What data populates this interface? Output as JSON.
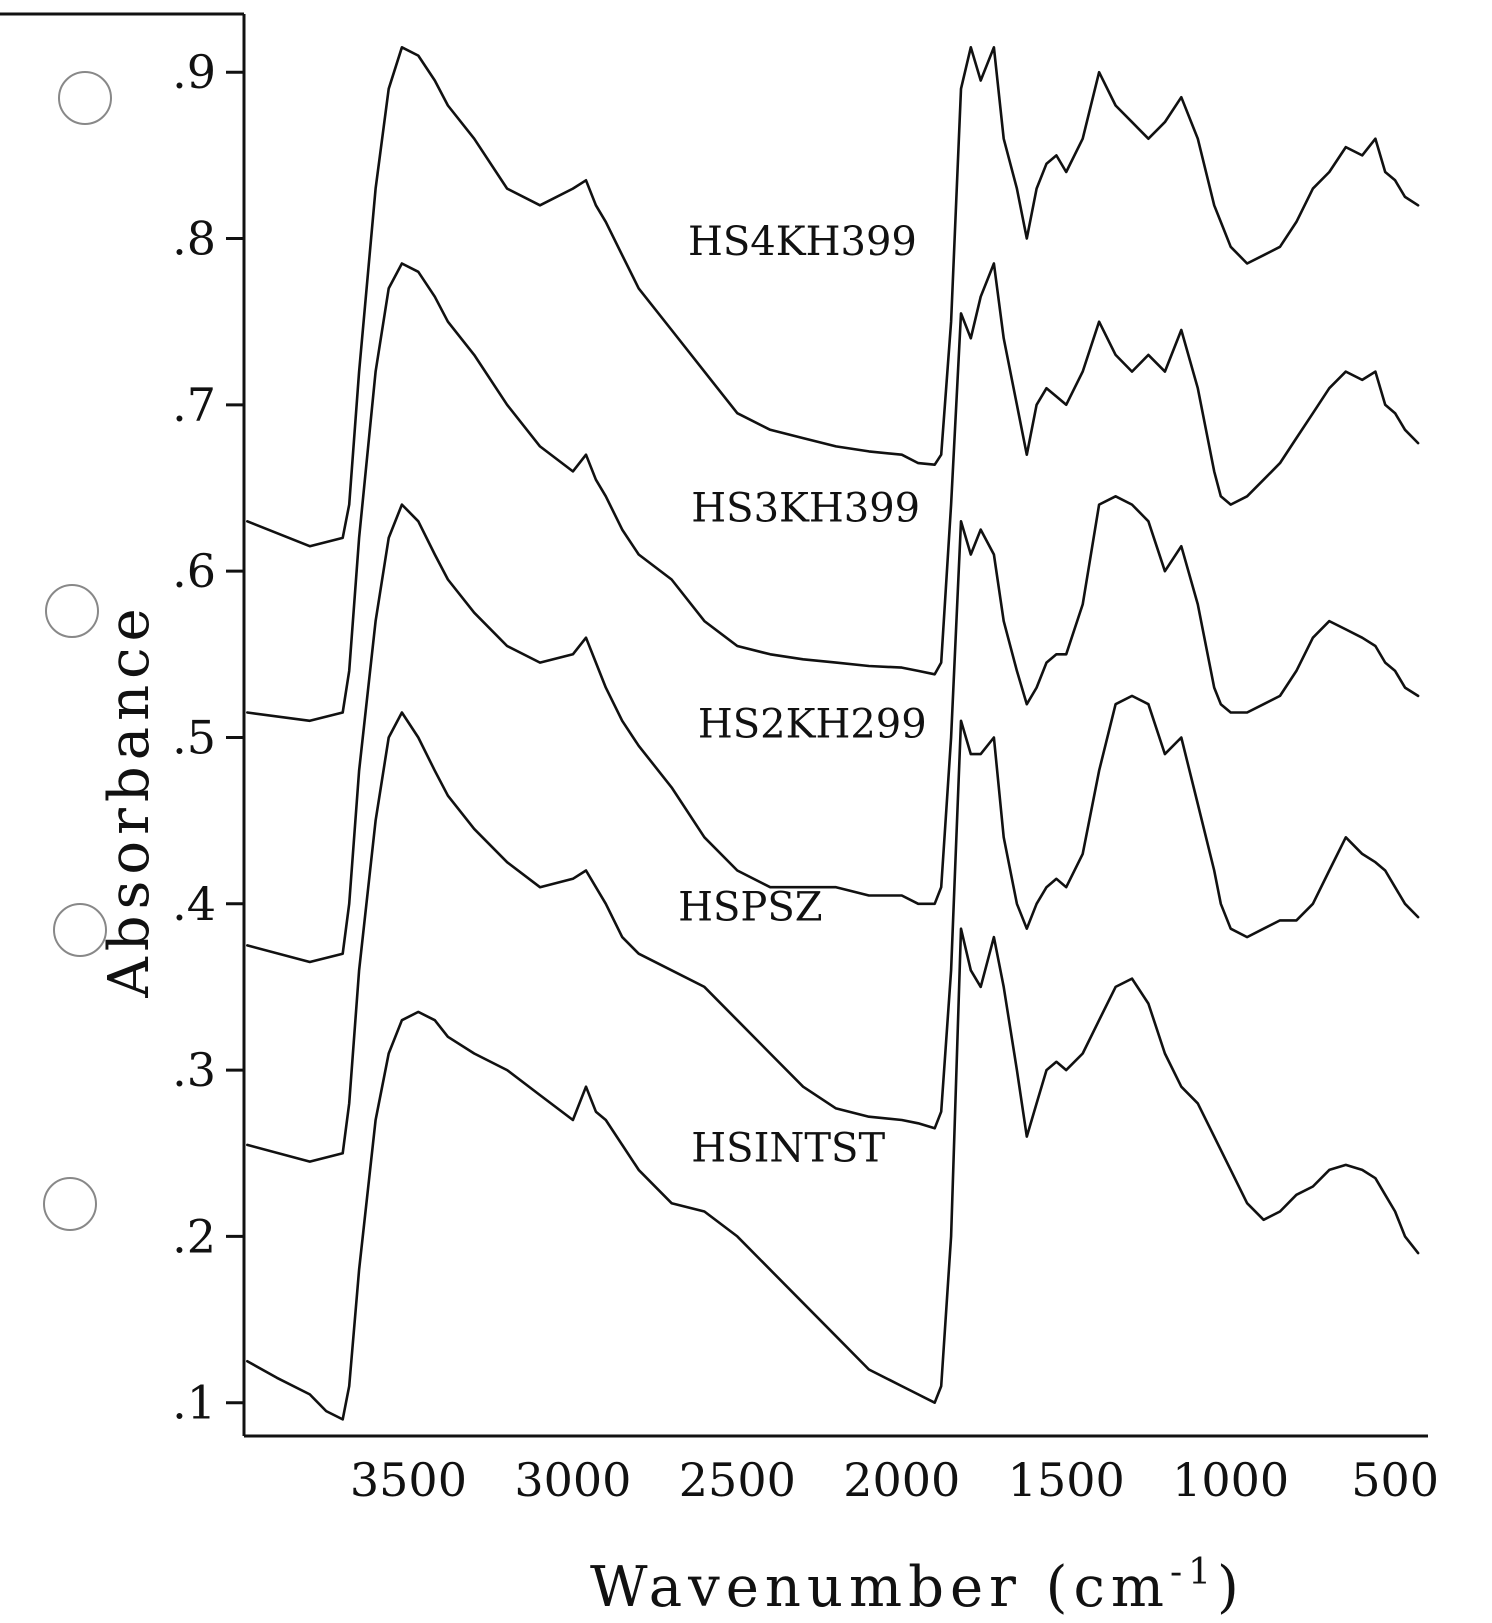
{
  "chart_data": {
    "type": "line",
    "title": "",
    "xlabel": "Wavenumber (cm",
    "xlabel_sup": "-1",
    "xlabel_close": ")",
    "ylabel": "Absorbance",
    "xlim": [
      4000,
      400
    ],
    "x_reversed": true,
    "ylim": [
      0.08,
      0.935
    ],
    "grid": false,
    "legend": "none (series labelled inline)",
    "yticks": [
      0.1,
      0.2,
      0.3,
      0.4,
      0.5,
      0.6,
      0.7,
      0.8,
      0.9
    ],
    "ytick_labels": [
      ".1",
      ".2",
      ".3",
      ".4",
      ".5",
      ".6",
      ".7",
      ".8",
      ".9"
    ],
    "xticks": [
      3500,
      3000,
      2500,
      2000,
      1500,
      1000,
      500
    ],
    "xtick_labels": [
      "3500",
      "3000",
      "2500",
      "2000",
      "1500",
      "1000",
      "500"
    ],
    "series": [
      {
        "name": "HS4KH399",
        "label_at": [
          2650,
          0.79
        ],
        "x": [
          3990,
          3800,
          3700,
          3680,
          3650,
          3600,
          3560,
          3520,
          3470,
          3420,
          3380,
          3300,
          3200,
          3100,
          3000,
          2960,
          2930,
          2900,
          2850,
          2800,
          2700,
          2600,
          2500,
          2400,
          2300,
          2200,
          2100,
          2000,
          1950,
          1900,
          1880,
          1850,
          1820,
          1790,
          1760,
          1720,
          1690,
          1650,
          1620,
          1590,
          1560,
          1530,
          1500,
          1450,
          1400,
          1350,
          1300,
          1250,
          1200,
          1150,
          1100,
          1050,
          1030,
          1000,
          950,
          900,
          850,
          800,
          750,
          700,
          650,
          600,
          560,
          530,
          500,
          470,
          430
        ],
        "y": [
          0.63,
          0.615,
          0.62,
          0.64,
          0.72,
          0.83,
          0.89,
          0.915,
          0.91,
          0.895,
          0.88,
          0.86,
          0.83,
          0.82,
          0.83,
          0.835,
          0.82,
          0.81,
          0.79,
          0.77,
          0.745,
          0.72,
          0.695,
          0.685,
          0.68,
          0.675,
          0.672,
          0.67,
          0.665,
          0.664,
          0.67,
          0.75,
          0.89,
          0.915,
          0.895,
          0.915,
          0.86,
          0.83,
          0.8,
          0.83,
          0.845,
          0.85,
          0.84,
          0.86,
          0.9,
          0.88,
          0.87,
          0.86,
          0.87,
          0.885,
          0.86,
          0.82,
          0.81,
          0.795,
          0.785,
          0.79,
          0.795,
          0.81,
          0.83,
          0.84,
          0.855,
          0.85,
          0.86,
          0.84,
          0.835,
          0.825,
          0.82
        ]
      },
      {
        "name": "HS3KH399",
        "label_at": [
          2640,
          0.63
        ],
        "x": [
          3990,
          3800,
          3700,
          3680,
          3650,
          3600,
          3560,
          3520,
          3470,
          3420,
          3380,
          3300,
          3200,
          3100,
          3000,
          2960,
          2930,
          2900,
          2850,
          2800,
          2700,
          2600,
          2500,
          2400,
          2300,
          2200,
          2100,
          2000,
          1950,
          1900,
          1880,
          1850,
          1820,
          1790,
          1760,
          1720,
          1690,
          1650,
          1620,
          1590,
          1560,
          1530,
          1500,
          1450,
          1400,
          1350,
          1300,
          1250,
          1200,
          1150,
          1100,
          1050,
          1030,
          1000,
          950,
          900,
          850,
          800,
          750,
          700,
          650,
          600,
          560,
          530,
          500,
          470,
          430
        ],
        "y": [
          0.515,
          0.51,
          0.515,
          0.54,
          0.62,
          0.72,
          0.77,
          0.785,
          0.78,
          0.765,
          0.75,
          0.73,
          0.7,
          0.675,
          0.66,
          0.67,
          0.655,
          0.645,
          0.625,
          0.61,
          0.595,
          0.57,
          0.555,
          0.55,
          0.547,
          0.545,
          0.543,
          0.542,
          0.54,
          0.538,
          0.545,
          0.64,
          0.755,
          0.74,
          0.765,
          0.785,
          0.74,
          0.7,
          0.67,
          0.7,
          0.71,
          0.705,
          0.7,
          0.72,
          0.75,
          0.73,
          0.72,
          0.73,
          0.72,
          0.745,
          0.71,
          0.66,
          0.645,
          0.64,
          0.645,
          0.655,
          0.665,
          0.68,
          0.695,
          0.71,
          0.72,
          0.715,
          0.72,
          0.7,
          0.695,
          0.685,
          0.677
        ]
      },
      {
        "name": "HS2KH299",
        "label_at": [
          2620,
          0.5
        ],
        "x": [
          3990,
          3800,
          3700,
          3680,
          3650,
          3600,
          3560,
          3520,
          3470,
          3420,
          3380,
          3300,
          3200,
          3100,
          3000,
          2960,
          2930,
          2900,
          2850,
          2800,
          2700,
          2600,
          2500,
          2400,
          2300,
          2200,
          2100,
          2000,
          1950,
          1900,
          1880,
          1850,
          1820,
          1790,
          1760,
          1720,
          1690,
          1650,
          1620,
          1590,
          1560,
          1530,
          1500,
          1450,
          1400,
          1350,
          1300,
          1250,
          1200,
          1150,
          1100,
          1050,
          1030,
          1000,
          950,
          900,
          850,
          800,
          750,
          700,
          650,
          600,
          560,
          530,
          500,
          470,
          430
        ],
        "y": [
          0.375,
          0.365,
          0.37,
          0.4,
          0.48,
          0.57,
          0.62,
          0.64,
          0.63,
          0.61,
          0.595,
          0.575,
          0.555,
          0.545,
          0.55,
          0.56,
          0.545,
          0.53,
          0.51,
          0.495,
          0.47,
          0.44,
          0.42,
          0.41,
          0.41,
          0.41,
          0.405,
          0.405,
          0.4,
          0.4,
          0.41,
          0.5,
          0.63,
          0.61,
          0.625,
          0.61,
          0.57,
          0.54,
          0.52,
          0.53,
          0.545,
          0.55,
          0.55,
          0.58,
          0.64,
          0.645,
          0.64,
          0.63,
          0.6,
          0.615,
          0.58,
          0.53,
          0.52,
          0.515,
          0.515,
          0.52,
          0.525,
          0.54,
          0.56,
          0.57,
          0.565,
          0.56,
          0.555,
          0.545,
          0.54,
          0.53,
          0.525
        ]
      },
      {
        "name": "HSPSZ",
        "label_at": [
          2680,
          0.39
        ],
        "x": [
          3990,
          3800,
          3700,
          3680,
          3650,
          3600,
          3560,
          3520,
          3470,
          3420,
          3380,
          3300,
          3200,
          3100,
          3000,
          2960,
          2930,
          2900,
          2850,
          2800,
          2700,
          2600,
          2500,
          2400,
          2300,
          2200,
          2100,
          2000,
          1950,
          1900,
          1880,
          1850,
          1820,
          1790,
          1760,
          1720,
          1690,
          1650,
          1620,
          1590,
          1560,
          1530,
          1500,
          1450,
          1400,
          1350,
          1300,
          1250,
          1200,
          1150,
          1100,
          1050,
          1030,
          1000,
          950,
          900,
          850,
          800,
          750,
          700,
          650,
          600,
          560,
          530,
          500,
          470,
          430
        ],
        "y": [
          0.255,
          0.245,
          0.25,
          0.28,
          0.36,
          0.45,
          0.5,
          0.515,
          0.5,
          0.48,
          0.465,
          0.445,
          0.425,
          0.41,
          0.415,
          0.42,
          0.41,
          0.4,
          0.38,
          0.37,
          0.36,
          0.35,
          0.33,
          0.31,
          0.29,
          0.277,
          0.272,
          0.27,
          0.268,
          0.265,
          0.275,
          0.36,
          0.51,
          0.49,
          0.49,
          0.5,
          0.44,
          0.4,
          0.385,
          0.4,
          0.41,
          0.415,
          0.41,
          0.43,
          0.48,
          0.52,
          0.525,
          0.52,
          0.49,
          0.5,
          0.46,
          0.42,
          0.4,
          0.385,
          0.38,
          0.385,
          0.39,
          0.39,
          0.4,
          0.42,
          0.44,
          0.43,
          0.425,
          0.42,
          0.41,
          0.4,
          0.392
        ]
      },
      {
        "name": "HSINTST",
        "label_at": [
          2640,
          0.245
        ],
        "x": [
          3990,
          3900,
          3800,
          3750,
          3700,
          3680,
          3650,
          3600,
          3560,
          3520,
          3470,
          3420,
          3380,
          3300,
          3200,
          3100,
          3000,
          2960,
          2930,
          2900,
          2850,
          2800,
          2700,
          2600,
          2500,
          2400,
          2300,
          2200,
          2100,
          2000,
          1950,
          1900,
          1880,
          1850,
          1820,
          1790,
          1760,
          1720,
          1690,
          1650,
          1620,
          1590,
          1560,
          1530,
          1500,
          1450,
          1400,
          1350,
          1300,
          1250,
          1200,
          1150,
          1100,
          1050,
          1000,
          950,
          900,
          850,
          800,
          750,
          700,
          650,
          600,
          560,
          530,
          500,
          470,
          430
        ],
        "y": [
          0.125,
          0.115,
          0.105,
          0.095,
          0.09,
          0.11,
          0.18,
          0.27,
          0.31,
          0.33,
          0.335,
          0.33,
          0.32,
          0.31,
          0.3,
          0.285,
          0.27,
          0.29,
          0.275,
          0.27,
          0.255,
          0.24,
          0.22,
          0.215,
          0.2,
          0.18,
          0.16,
          0.14,
          0.12,
          0.11,
          0.105,
          0.1,
          0.11,
          0.2,
          0.385,
          0.36,
          0.35,
          0.38,
          0.35,
          0.3,
          0.26,
          0.28,
          0.3,
          0.305,
          0.3,
          0.31,
          0.33,
          0.35,
          0.355,
          0.34,
          0.31,
          0.29,
          0.28,
          0.26,
          0.24,
          0.22,
          0.21,
          0.215,
          0.225,
          0.23,
          0.24,
          0.243,
          0.24,
          0.235,
          0.225,
          0.215,
          0.2,
          0.19
        ]
      }
    ]
  }
}
